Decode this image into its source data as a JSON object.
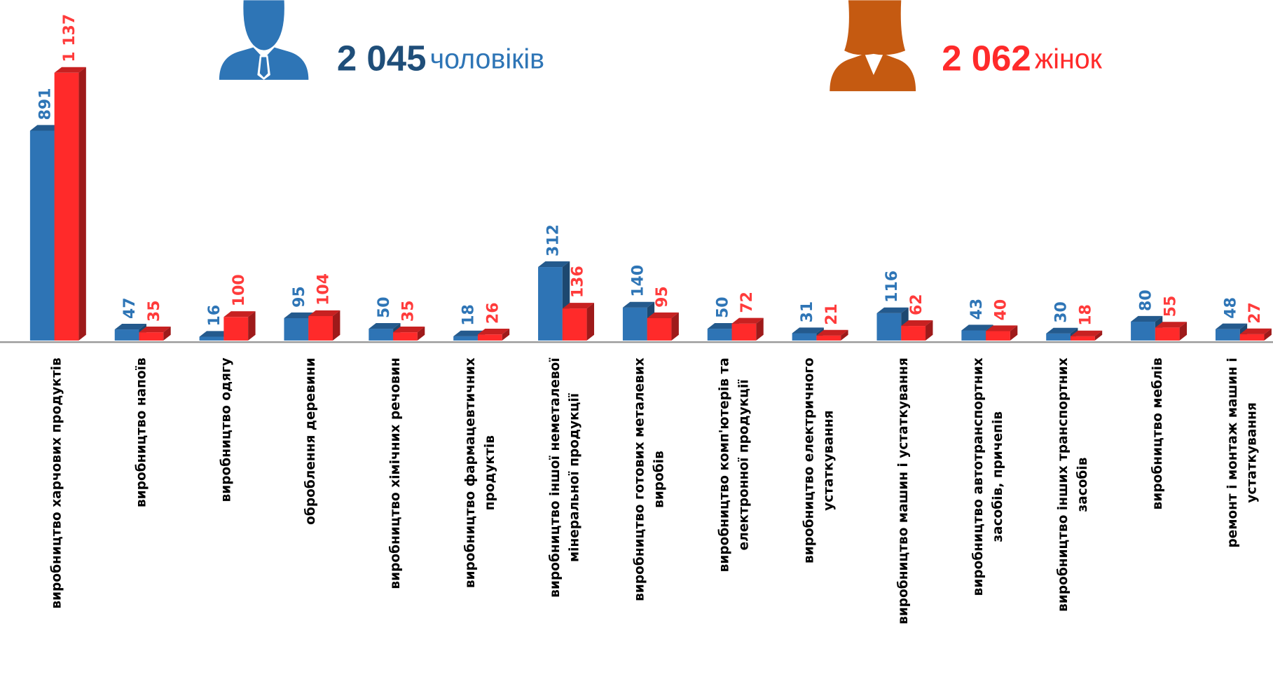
{
  "chart_data": {
    "type": "bar",
    "categories": [
      "виробництво харчових продуктів",
      "виробництво напоїв",
      "виробництво одягу",
      "оброблення деревини",
      "виробництво хімічних речовин",
      "виробництво фармацевтичних продуктів",
      "виробництво іншої неметалевої мінеральної продукції",
      "виробництво готових металевих виробів",
      "виробництво комп'ютерів та електронної продукції",
      "виробництво електричного устаткування",
      "виробництво машин і устаткування",
      "виробництво автотранспортних засобів, причепів",
      "виробництво інших транспортних засобів",
      "виробництво меблів",
      "ремонт і монтаж машин і устаткування"
    ],
    "series": [
      {
        "name": "чоловіків",
        "total": "2 045",
        "color": "#2e74b5",
        "label_color": "#2e75b6",
        "values": [
          891,
          47,
          16,
          95,
          50,
          18,
          312,
          140,
          50,
          31,
          116,
          43,
          30,
          80,
          48
        ],
        "value_labels": [
          "891",
          "47",
          "16",
          "95",
          "50",
          "18",
          "312",
          "140",
          "50",
          "31",
          "116",
          "43",
          "30",
          "80",
          "48"
        ]
      },
      {
        "name": "жінок",
        "total": "2 062",
        "color": "#ff2a2a",
        "label_color": "#ff3b3b",
        "values": [
          1137,
          35,
          100,
          104,
          35,
          26,
          136,
          95,
          72,
          21,
          62,
          40,
          18,
          55,
          27
        ],
        "value_labels": [
          "1 137",
          "35",
          "100",
          "104",
          "35",
          "26",
          "136",
          "95",
          "72",
          "21",
          "62",
          "40",
          "18",
          "55",
          "27"
        ]
      }
    ]
  }
}
